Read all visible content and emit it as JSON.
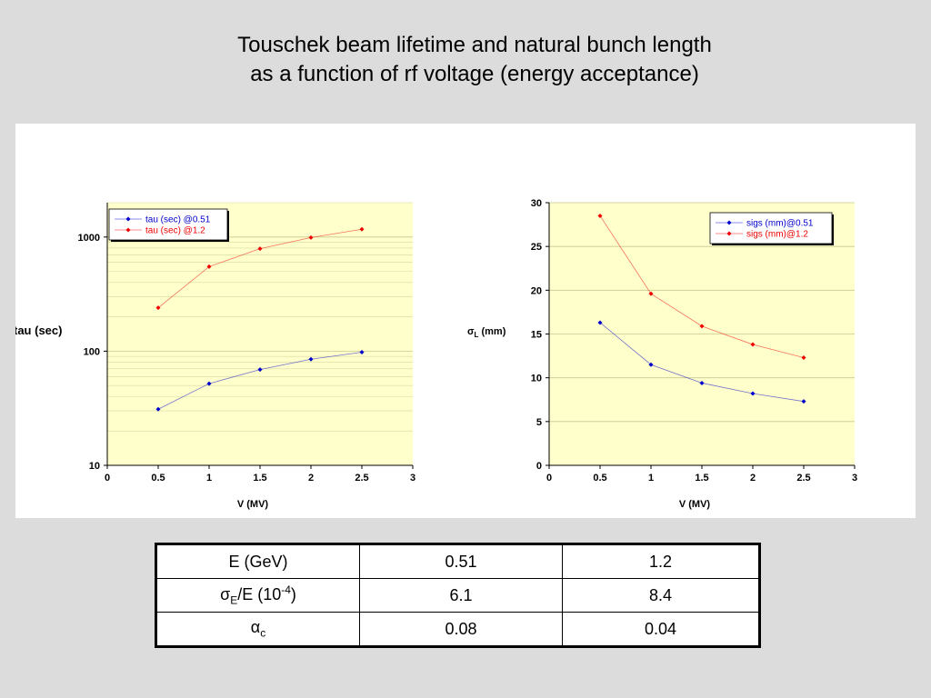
{
  "title": {
    "line1": "Touschek beam lifetime and natural bunch length",
    "line2": "as a function of rf voltage (energy acceptance)"
  },
  "colors": {
    "series_a": "#0000cc",
    "series_b": "#ee0000",
    "plot_bg": "#ffffcc",
    "grid": "#d8d8a0"
  },
  "chart_data": [
    {
      "type": "line",
      "ylabel": "tau (sec)",
      "xlabel": "V (MV)",
      "xlim": [
        0,
        3
      ],
      "xticks": [
        "0",
        "0.5",
        "1",
        "1.5",
        "2",
        "2.5",
        "3"
      ],
      "ylim": [
        10,
        2000
      ],
      "yscale": "log",
      "yticks": [
        "10",
        "100",
        "1000"
      ],
      "legend": "top-left",
      "grid": true,
      "x": [
        0.5,
        1,
        1.5,
        2,
        2.5
      ],
      "series": [
        {
          "name": "tau (sec) @0.51",
          "values": [
            31,
            52,
            69,
            85,
            98
          ]
        },
        {
          "name": "tau (sec) @1.2",
          "values": [
            240,
            550,
            790,
            990,
            1170
          ]
        }
      ]
    },
    {
      "type": "line",
      "ylabel_symbol": "σ",
      "ylabel_sub": "L",
      "ylabel_rest": " (mm)",
      "xlabel": "V (MV)",
      "xlim": [
        0,
        3
      ],
      "xticks": [
        "0",
        "0.5",
        "1",
        "1.5",
        "2",
        "2.5",
        "3"
      ],
      "ylim": [
        0,
        30
      ],
      "yticks": [
        "0",
        "5",
        "10",
        "15",
        "20",
        "25",
        "30"
      ],
      "legend": "top-right",
      "grid": true,
      "x": [
        0.5,
        1,
        1.5,
        2,
        2.5
      ],
      "series": [
        {
          "name": "sigs (mm)@0.51",
          "values": [
            16.3,
            11.5,
            9.4,
            8.2,
            7.3
          ]
        },
        {
          "name": "sigs (mm)@1.2",
          "values": [
            28.5,
            19.6,
            15.9,
            13.8,
            12.3
          ]
        }
      ]
    }
  ],
  "table": {
    "header_label": "E (GeV)",
    "header_values": [
      "0.51",
      "1.2"
    ],
    "row1_label_sym": "σ",
    "row1_label_sub": "E",
    "row1_label_mid": "/E (10",
    "row1_label_sup": "-4",
    "row1_label_end": ")",
    "row1_values": [
      "6.1",
      "8.4"
    ],
    "row2_label_sym": "α",
    "row2_label_sub": "c",
    "row2_values": [
      "0.08",
      "0.04"
    ]
  }
}
